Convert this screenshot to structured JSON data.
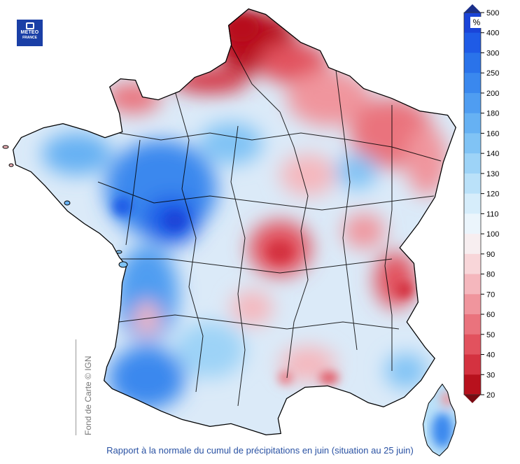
{
  "logo": {
    "line1": "METEO",
    "line2": "FRANCE"
  },
  "credit": "Fond de Carte © IGN",
  "caption": "Rapport à la normale du cumul de précipitations en juin (situation au 25 juin)",
  "legend": {
    "unit": "%",
    "ticks": [
      "500",
      "400",
      "300",
      "250",
      "200",
      "180",
      "160",
      "140",
      "130",
      "120",
      "110",
      "100",
      "90",
      "80",
      "70",
      "60",
      "50",
      "40",
      "30",
      "20"
    ],
    "colors": [
      "#1a44d8",
      "#1f5be6",
      "#2a73ea",
      "#3a88ee",
      "#4f9df1",
      "#66b1f3",
      "#80c3f5",
      "#9dd3f7",
      "#bae1f9",
      "#d6edfb",
      "#ebf5fc",
      "#f7eef0",
      "#f8d6d9",
      "#f5b7bd",
      "#f0959d",
      "#ea737d",
      "#e2525e",
      "#d43240",
      "#b8111d"
    ]
  }
}
